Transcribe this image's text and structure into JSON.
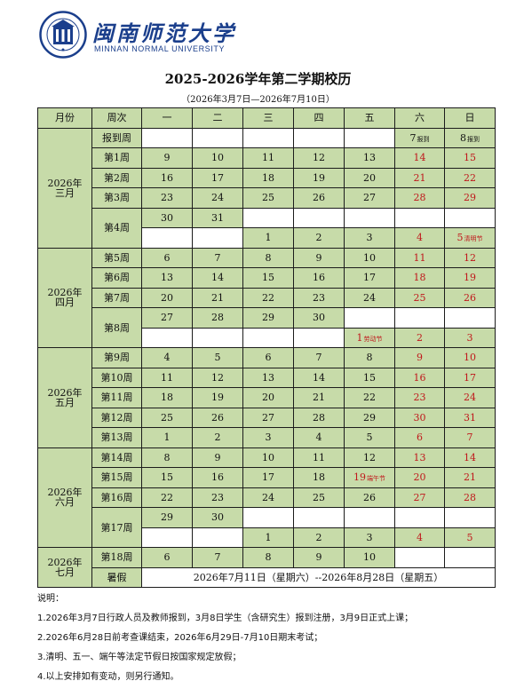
{
  "header": {
    "logo_cn": "闽南师范大学",
    "logo_en": "MINNAN NORMAL UNIVERSITY"
  },
  "title": "2025-2026学年第二学期校历",
  "subtitle": "（2026年3月7日—2026年7月10日）",
  "columns": [
    "月份",
    "周次",
    "一",
    "二",
    "三",
    "四",
    "五",
    "六",
    "日"
  ],
  "months": [
    "2026年三月",
    "2026年四月",
    "2026年五月",
    "2026年六月",
    "2026年七月"
  ],
  "weeks": [
    "报到周",
    "第1周",
    "第2周",
    "第3周",
    "第4周",
    "第5周",
    "第6周",
    "第7周",
    "第8周",
    "第9周",
    "第10周",
    "第11周",
    "第12周",
    "第13周",
    "第14周",
    "第15周",
    "第16周",
    "第17周",
    "第18周",
    "暑假"
  ],
  "rows": [
    [
      "",
      "",
      "",
      "",
      "",
      "7",
      "8"
    ],
    [
      "9",
      "10",
      "11",
      "12",
      "13",
      "14",
      "15"
    ],
    [
      "16",
      "17",
      "18",
      "19",
      "20",
      "21",
      "22"
    ],
    [
      "23",
      "24",
      "25",
      "26",
      "27",
      "28",
      "29"
    ],
    [
      "30",
      "31",
      "",
      "",
      "",
      "",
      ""
    ],
    [
      "",
      "",
      "1",
      "2",
      "3",
      "4",
      "5"
    ],
    [
      "6",
      "7",
      "8",
      "9",
      "10",
      "11",
      "12"
    ],
    [
      "13",
      "14",
      "15",
      "16",
      "17",
      "18",
      "19"
    ],
    [
      "20",
      "21",
      "22",
      "23",
      "24",
      "25",
      "26"
    ],
    [
      "27",
      "28",
      "29",
      "30",
      "",
      "",
      ""
    ],
    [
      "",
      "",
      "",
      "",
      "1",
      "2",
      "3"
    ],
    [
      "4",
      "5",
      "6",
      "7",
      "8",
      "9",
      "10"
    ],
    [
      "11",
      "12",
      "13",
      "14",
      "15",
      "16",
      "17"
    ],
    [
      "18",
      "19",
      "20",
      "21",
      "22",
      "23",
      "24"
    ],
    [
      "25",
      "26",
      "27",
      "28",
      "29",
      "30",
      "31"
    ],
    [
      "1",
      "2",
      "3",
      "4",
      "5",
      "6",
      "7"
    ],
    [
      "8",
      "9",
      "10",
      "11",
      "12",
      "13",
      "14"
    ],
    [
      "15",
      "16",
      "17",
      "18",
      "19",
      "20",
      "21"
    ],
    [
      "22",
      "23",
      "24",
      "25",
      "26",
      "27",
      "28"
    ],
    [
      "29",
      "30",
      "",
      "",
      "",
      "",
      ""
    ],
    [
      "",
      "",
      "1",
      "2",
      "3",
      "4",
      "5"
    ],
    [
      "6",
      "7",
      "8",
      "9",
      "10",
      "",
      ""
    ]
  ],
  "annotations": {
    "report": "报到",
    "qingming": "清明节",
    "labor": "劳动节",
    "duanwu": "端午节"
  },
  "vacation_text": "2026年7月11日（星期六）--2026年8月28日（星期五）",
  "notes": [
    "说明：",
    "1.2026年3月7日行政人员及教师报到，3月8日学生（含研究生）报到注册，3月9日正式上课；",
    "2.2026年6月28日前考查课结束，2026年6月29日-7月10日期末考试；",
    "3.清明、五一、端午等法定节假日按国家规定放假；",
    "4.以上安排如有变动，则另行通知。"
  ],
  "colors": {
    "cell_green": "#c7dba9",
    "holiday_red": "#c0171b",
    "logo_blue": "#1b3f8c"
  }
}
